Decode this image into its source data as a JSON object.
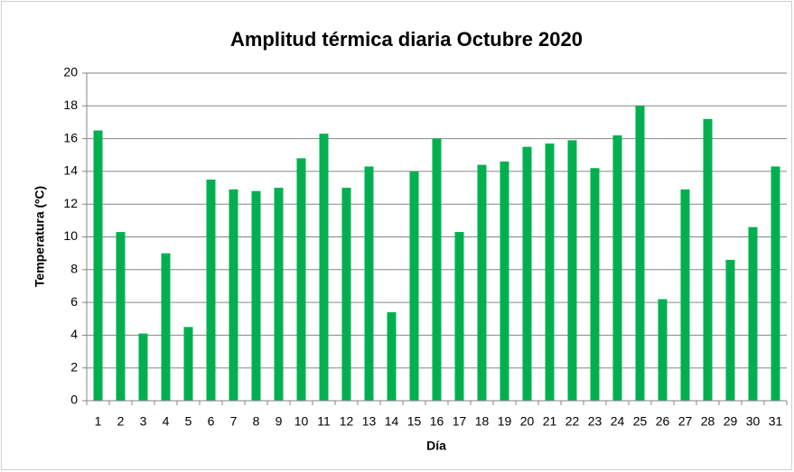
{
  "chart_data": {
    "type": "bar",
    "title": "Amplitud térmica diaria Octubre 2020",
    "xlabel": "Día",
    "ylabel": "Temperatura (ºC)",
    "categories": [
      "1",
      "2",
      "3",
      "4",
      "5",
      "6",
      "7",
      "8",
      "9",
      "10",
      "11",
      "12",
      "13",
      "14",
      "15",
      "16",
      "17",
      "18",
      "19",
      "20",
      "21",
      "22",
      "23",
      "24",
      "25",
      "26",
      "27",
      "28",
      "29",
      "30",
      "31"
    ],
    "values": [
      16.5,
      10.3,
      4.1,
      9.0,
      4.5,
      13.5,
      12.9,
      12.8,
      13.0,
      14.8,
      16.3,
      13.0,
      14.3,
      5.4,
      14.0,
      16.0,
      10.3,
      14.4,
      14.6,
      15.5,
      15.7,
      15.9,
      14.2,
      16.2,
      18.0,
      6.2,
      12.9,
      17.2,
      8.6,
      10.6,
      14.3
    ],
    "color": "#00b050",
    "ylim": [
      0,
      20
    ],
    "yticks": [
      0,
      2,
      4,
      6,
      8,
      10,
      12,
      14,
      16,
      18,
      20
    ],
    "grid": true
  }
}
